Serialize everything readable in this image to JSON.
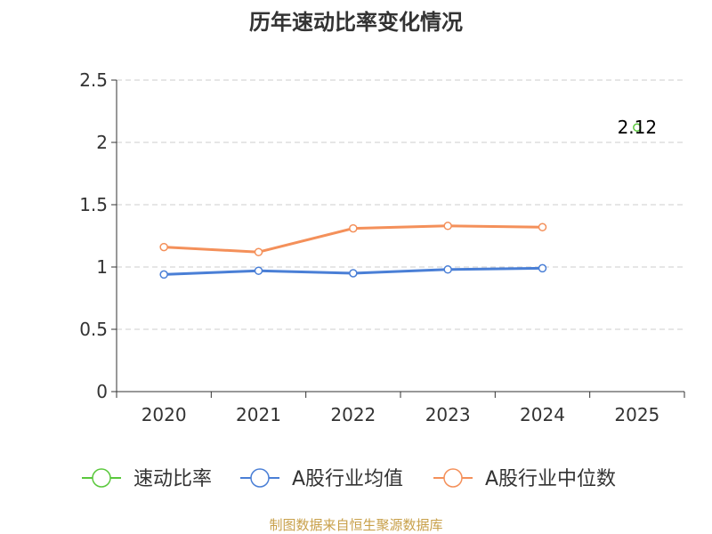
{
  "chart_data": {
    "type": "line",
    "title": "历年速动比率变化情况",
    "categories": [
      "2020",
      "2021",
      "2022",
      "2023",
      "2024",
      "2025"
    ],
    "ylim": [
      0,
      2.5
    ],
    "yticks": [
      "0",
      "0.5",
      "1",
      "1.5",
      "2",
      "2.5"
    ],
    "grid": true,
    "legend_position": "bottom",
    "series": [
      {
        "name": "速动比率",
        "color": "#5ac83c",
        "values": [
          null,
          null,
          null,
          null,
          null,
          2.12
        ],
        "labels": [
          null,
          null,
          null,
          null,
          null,
          "2.12"
        ]
      },
      {
        "name": "A股行业均值",
        "color": "#4a7fd6",
        "values": [
          0.94,
          0.97,
          0.95,
          0.98,
          0.99,
          null
        ]
      },
      {
        "name": "A股行业中位数",
        "color": "#f4905a",
        "values": [
          1.16,
          1.12,
          1.31,
          1.33,
          1.32,
          null
        ]
      }
    ]
  },
  "footer": {
    "source": "制图数据来自恒生聚源数据库"
  }
}
